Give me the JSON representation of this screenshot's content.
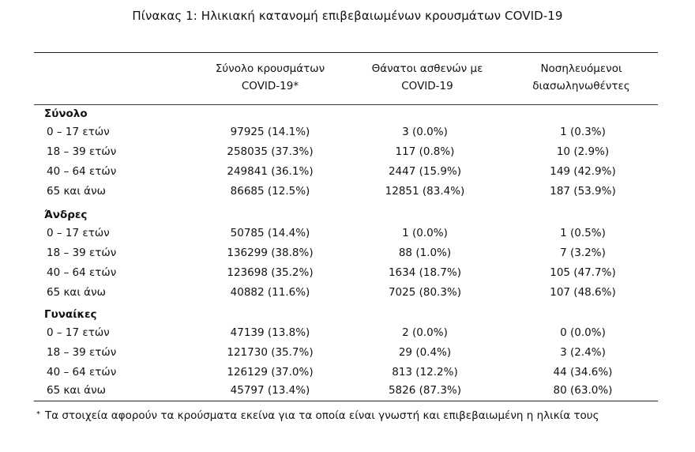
{
  "title": "Πίνακας 1: Ηλικιακή κατανομή επιβεβαιωμένων κρουσμάτων COVID-19",
  "headers": {
    "col1": [
      "Σύνολο κρουσμάτων",
      "COVID-19*"
    ],
    "col2": [
      "Θάνατοι ασθενών με",
      "COVID-19"
    ],
    "col3": [
      "Νοσηλευόμενοι",
      "διασωληνωθέντες"
    ]
  },
  "sections": [
    {
      "label": "Σύνολο",
      "rows": [
        {
          "age": "0 – 17 ετών",
          "cases": "97925 (14.1%)",
          "deaths": "3 (0.0%)",
          "intubated": "1 (0.3%)"
        },
        {
          "age": "18 – 39 ετών",
          "cases": "258035 (37.3%)",
          "deaths": "117 (0.8%)",
          "intubated": "10 (2.9%)"
        },
        {
          "age": "40 – 64 ετών",
          "cases": "249841 (36.1%)",
          "deaths": "2447 (15.9%)",
          "intubated": "149 (42.9%)"
        },
        {
          "age": "65 και άνω",
          "cases": "86685 (12.5%)",
          "deaths": "12851 (83.4%)",
          "intubated": "187 (53.9%)"
        }
      ]
    },
    {
      "label": "Άνδρες",
      "rows": [
        {
          "age": "0 – 17 ετών",
          "cases": "50785 (14.4%)",
          "deaths": "1 (0.0%)",
          "intubated": "1 (0.5%)"
        },
        {
          "age": "18 – 39 ετών",
          "cases": "136299 (38.8%)",
          "deaths": "88 (1.0%)",
          "intubated": "7 (3.2%)"
        },
        {
          "age": "40 – 64 ετών",
          "cases": "123698 (35.2%)",
          "deaths": "1634 (18.7%)",
          "intubated": "105 (47.7%)"
        },
        {
          "age": "65 και άνω",
          "cases": "40882 (11.6%)",
          "deaths": "7025 (80.3%)",
          "intubated": "107 (48.6%)"
        }
      ]
    },
    {
      "label": "Γυναίκες",
      "rows": [
        {
          "age": "0 – 17 ετών",
          "cases": "47139 (13.8%)",
          "deaths": "2 (0.0%)",
          "intubated": "0 (0.0%)"
        },
        {
          "age": "18 – 39 ετών",
          "cases": "121730 (35.7%)",
          "deaths": "29 (0.4%)",
          "intubated": "3 (2.4%)"
        },
        {
          "age": "40 – 64 ετών",
          "cases": "126129 (37.0%)",
          "deaths": "813 (12.2%)",
          "intubated": "44 (34.6%)"
        },
        {
          "age": "65 και άνω",
          "cases": "45797 (13.4%)",
          "deaths": "5826 (87.3%)",
          "intubated": "80 (63.0%)"
        }
      ]
    }
  ],
  "footnote": {
    "mark": "*",
    "text": "Τα στοιχεία αφορούν τα κρούσματα εκείνα για τα οποία είναι γνωστή και επιβεβαιωμένη η ηλικία τους"
  }
}
